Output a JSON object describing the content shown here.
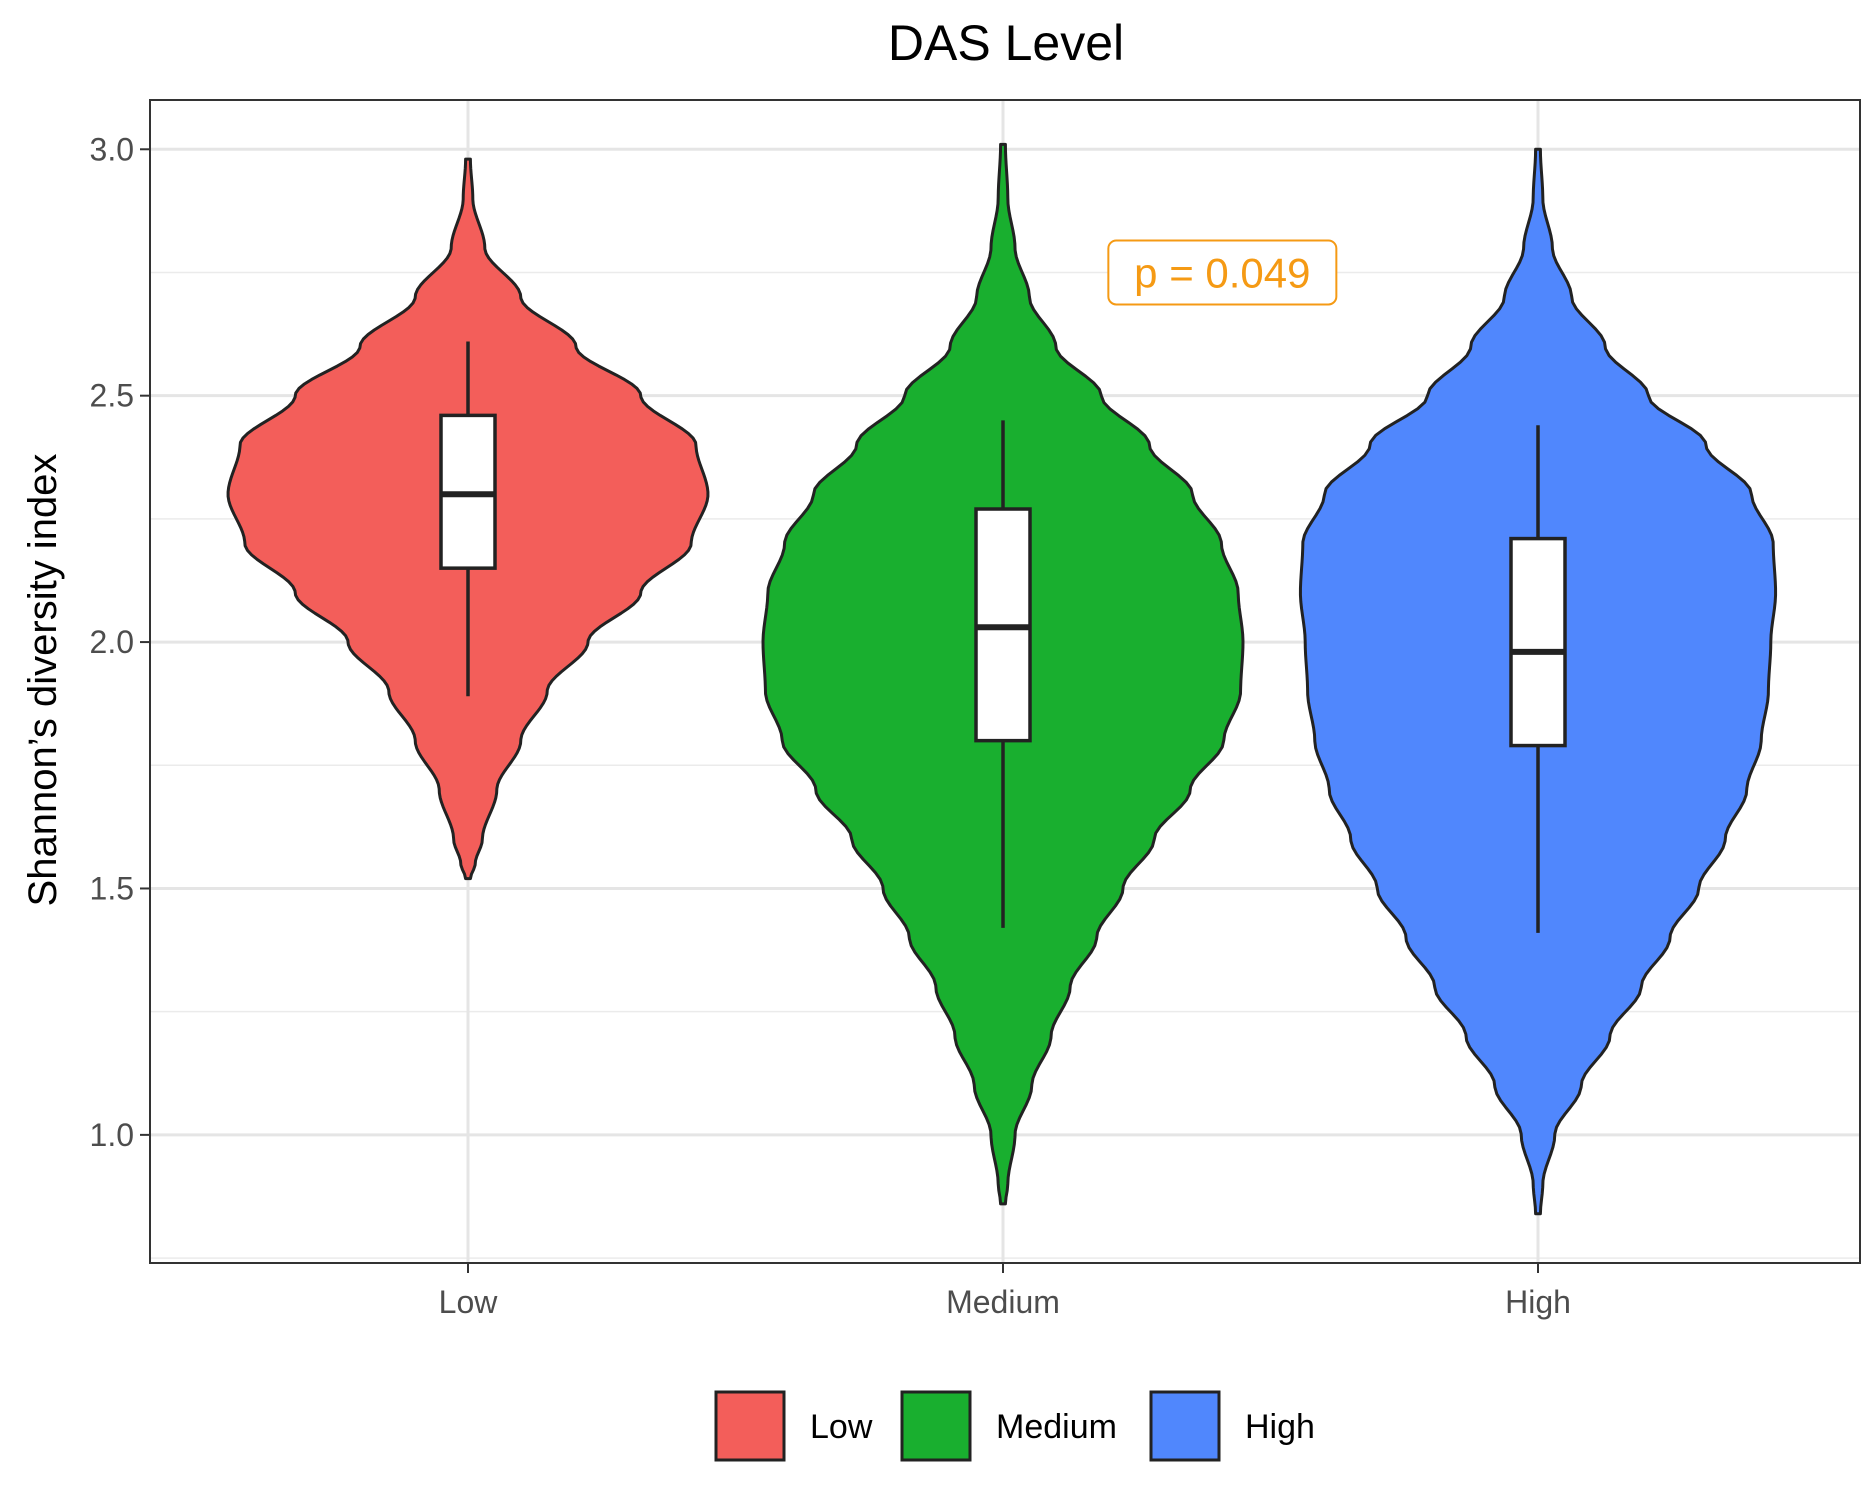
{
  "chart_data": {
    "type": "violin",
    "title": "DAS Level",
    "xlabel": "",
    "ylabel": "Shannon’s diversity index",
    "ylim": [
      0.74,
      3.1
    ],
    "yticks": [
      1.0,
      1.5,
      2.0,
      2.5,
      3.0
    ],
    "ytick_labels": [
      "1.0",
      "1.5",
      "2.0",
      "2.5",
      "3.0"
    ],
    "grid": true,
    "legend_position": "bottom",
    "categories": [
      "Low",
      "Medium",
      "High"
    ],
    "colors": {
      "Low": "#F35E5A",
      "Medium": "#19AF2F",
      "High": "#5087FD"
    },
    "series": [
      {
        "name": "Low",
        "violin_min": 1.52,
        "violin_max": 2.98,
        "box": {
          "whisker_low": 1.89,
          "q1": 2.15,
          "median": 2.3,
          "q3": 2.46,
          "whisker_high": 2.61
        },
        "density_profile": [
          [
            1.52,
            0.01
          ],
          [
            1.55,
            0.03
          ],
          [
            1.6,
            0.06
          ],
          [
            1.7,
            0.12
          ],
          [
            1.8,
            0.22
          ],
          [
            1.9,
            0.33
          ],
          [
            2.0,
            0.5
          ],
          [
            2.1,
            0.72
          ],
          [
            2.2,
            0.93
          ],
          [
            2.3,
            1.0
          ],
          [
            2.4,
            0.95
          ],
          [
            2.5,
            0.72
          ],
          [
            2.6,
            0.45
          ],
          [
            2.7,
            0.22
          ],
          [
            2.8,
            0.07
          ],
          [
            2.9,
            0.02
          ],
          [
            2.98,
            0.01
          ]
        ]
      },
      {
        "name": "Medium",
        "violin_min": 0.86,
        "violin_max": 3.01,
        "box": {
          "whisker_low": 1.42,
          "q1": 1.8,
          "median": 2.03,
          "q3": 2.27,
          "whisker_high": 2.45
        },
        "density_profile": [
          [
            0.86,
            0.01
          ],
          [
            0.9,
            0.02
          ],
          [
            1.0,
            0.05
          ],
          [
            1.1,
            0.12
          ],
          [
            1.2,
            0.2
          ],
          [
            1.3,
            0.28
          ],
          [
            1.4,
            0.39
          ],
          [
            1.5,
            0.5
          ],
          [
            1.6,
            0.63
          ],
          [
            1.7,
            0.78
          ],
          [
            1.8,
            0.92
          ],
          [
            1.9,
            0.99
          ],
          [
            2.0,
            1.0
          ],
          [
            2.1,
            0.98
          ],
          [
            2.2,
            0.91
          ],
          [
            2.3,
            0.79
          ],
          [
            2.4,
            0.61
          ],
          [
            2.5,
            0.41
          ],
          [
            2.6,
            0.22
          ],
          [
            2.7,
            0.11
          ],
          [
            2.8,
            0.05
          ],
          [
            2.9,
            0.02
          ],
          [
            3.01,
            0.01
          ]
        ]
      },
      {
        "name": "High",
        "violin_min": 0.84,
        "violin_max": 3.0,
        "box": {
          "whisker_low": 1.41,
          "q1": 1.79,
          "median": 1.98,
          "q3": 2.21,
          "whisker_high": 2.44
        },
        "density_profile": [
          [
            0.84,
            0.01
          ],
          [
            0.9,
            0.02
          ],
          [
            1.0,
            0.07
          ],
          [
            1.1,
            0.18
          ],
          [
            1.2,
            0.3
          ],
          [
            1.3,
            0.43
          ],
          [
            1.4,
            0.55
          ],
          [
            1.5,
            0.67
          ],
          [
            1.6,
            0.78
          ],
          [
            1.7,
            0.87
          ],
          [
            1.8,
            0.93
          ],
          [
            1.9,
            0.96
          ],
          [
            2.0,
            0.97
          ],
          [
            2.1,
            0.99
          ],
          [
            2.2,
            0.98
          ],
          [
            2.3,
            0.89
          ],
          [
            2.4,
            0.7
          ],
          [
            2.5,
            0.46
          ],
          [
            2.6,
            0.28
          ],
          [
            2.7,
            0.14
          ],
          [
            2.8,
            0.06
          ],
          [
            2.9,
            0.02
          ],
          [
            3.0,
            0.01
          ]
        ]
      }
    ],
    "annotation": {
      "text": "p = 0.049",
      "x_category": "Medium",
      "x_offset": 0.41,
      "y": 2.75,
      "color": "#F59A14"
    }
  }
}
